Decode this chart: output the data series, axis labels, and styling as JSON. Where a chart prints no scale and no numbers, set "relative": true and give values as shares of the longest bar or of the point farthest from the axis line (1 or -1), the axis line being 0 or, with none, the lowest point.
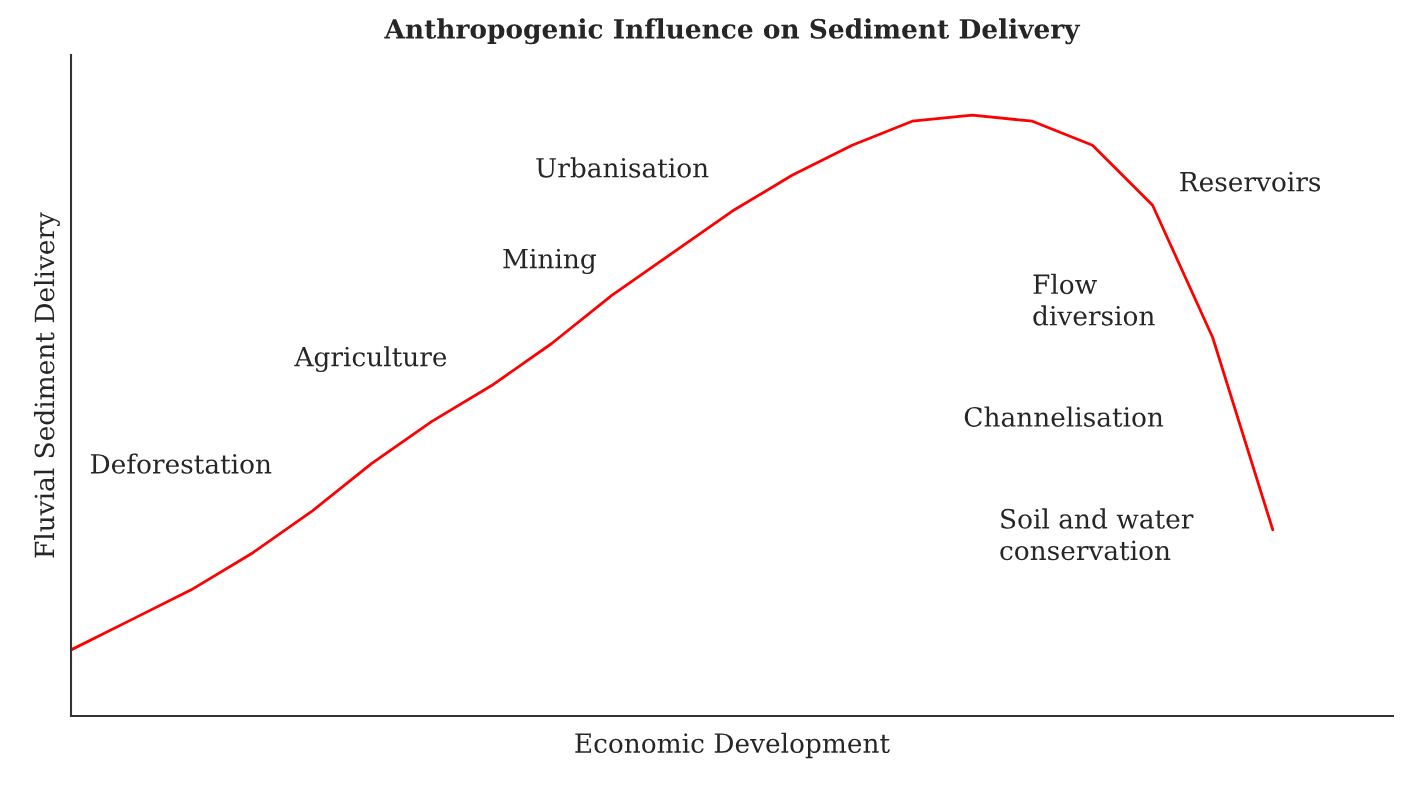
{
  "chart_data": {
    "type": "line",
    "title": "Anthropogenic Influence on Sediment Delivery",
    "xlabel": "Economic Development",
    "ylabel": "Fluvial Sediment Delivery",
    "relative": true,
    "tick_labels": false,
    "grid": false,
    "legend": false,
    "marker": "none",
    "line_style": "solid",
    "categories": [
      null,
      null,
      null,
      null,
      null,
      null,
      null,
      null,
      null,
      null,
      null,
      null,
      null,
      null,
      null,
      null,
      null,
      null,
      null,
      null,
      null,
      null,
      null
    ],
    "series": [
      {
        "color": "#ff0000",
        "values": [
          0.11,
          0.16,
          0.21,
          0.27,
          0.34,
          0.42,
          0.49,
          0.55,
          0.62,
          0.7,
          0.77,
          0.84,
          0.9,
          0.95,
          0.99,
          1.0,
          0.99,
          0.95,
          0.85,
          0.63,
          0.31,
          null,
          null
        ]
      }
    ],
    "annotations": [
      "Deforestation",
      "Agriculture",
      "Mining",
      "Urbanisation",
      "Reservoirs",
      "Flow\ndiversion",
      "Channelisation",
      "Soil and water\nconservation"
    ]
  }
}
